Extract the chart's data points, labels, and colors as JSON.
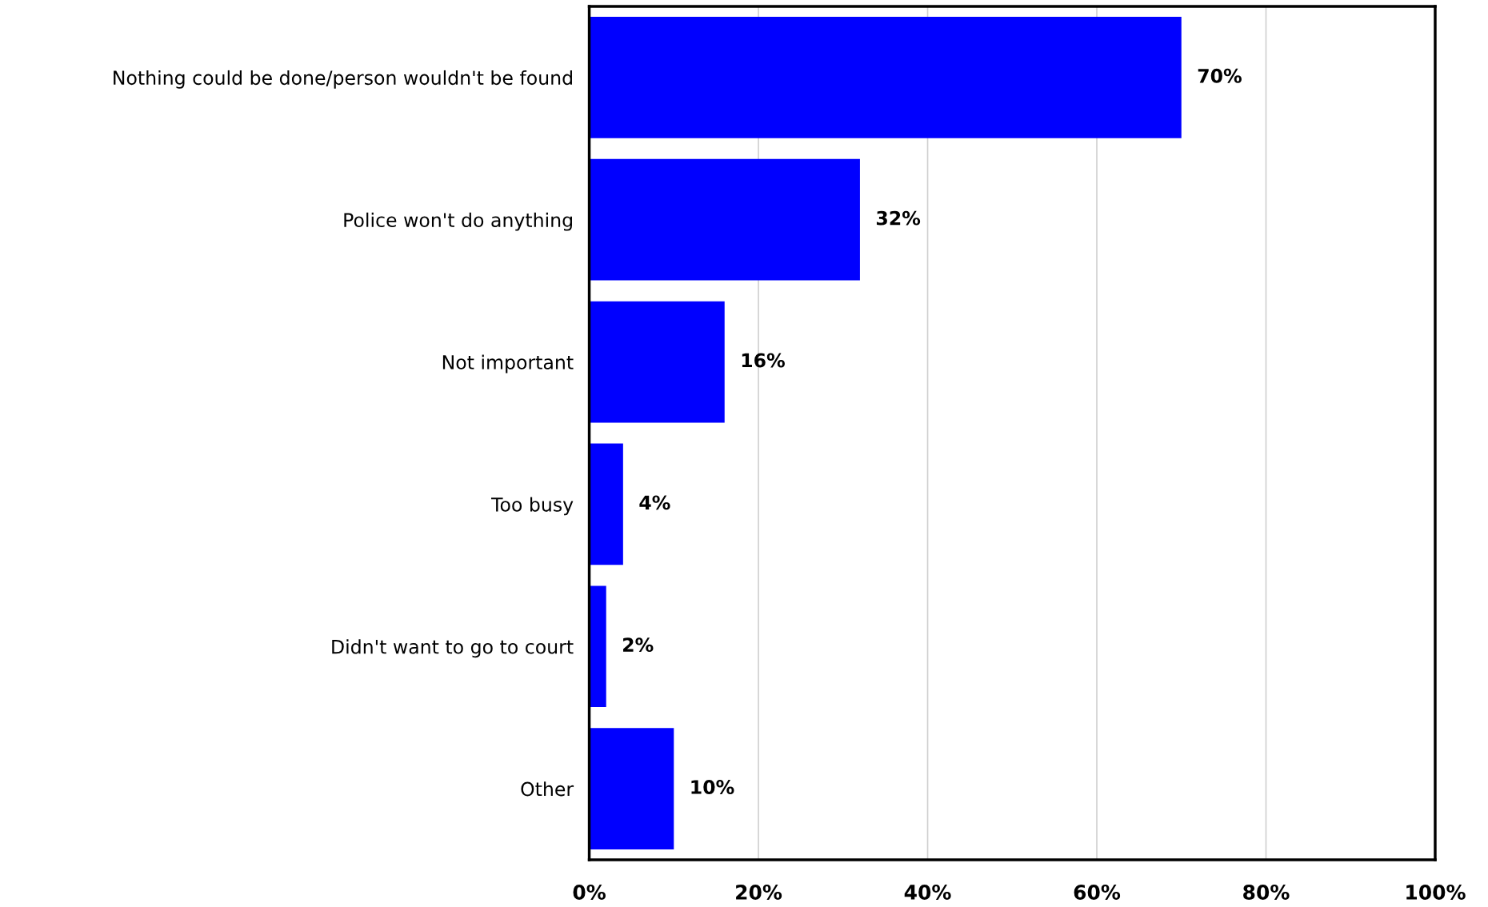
{
  "chart_data": {
    "type": "bar",
    "orientation": "horizontal",
    "categories": [
      "Nothing could be done/person wouldn't be found",
      "Police won't do anything",
      "Not important",
      "Too busy",
      "Didn't want to go to court",
      "Other"
    ],
    "values": [
      70,
      32,
      16,
      4,
      2,
      10
    ],
    "color": "#0000ff",
    "value_labels": [
      "70%",
      "32%",
      "16%",
      "4%",
      "2%",
      "10%"
    ],
    "xlim": [
      0,
      100
    ],
    "xticks": [
      {
        "value": 0,
        "label": "0%"
      },
      {
        "value": 20,
        "label": "20%"
      },
      {
        "value": 40,
        "label": "40%"
      },
      {
        "value": 60,
        "label": "60%"
      },
      {
        "value": 80,
        "label": "80%"
      },
      {
        "value": 100,
        "label": "100%"
      }
    ],
    "grid": "x",
    "legend": false
  }
}
